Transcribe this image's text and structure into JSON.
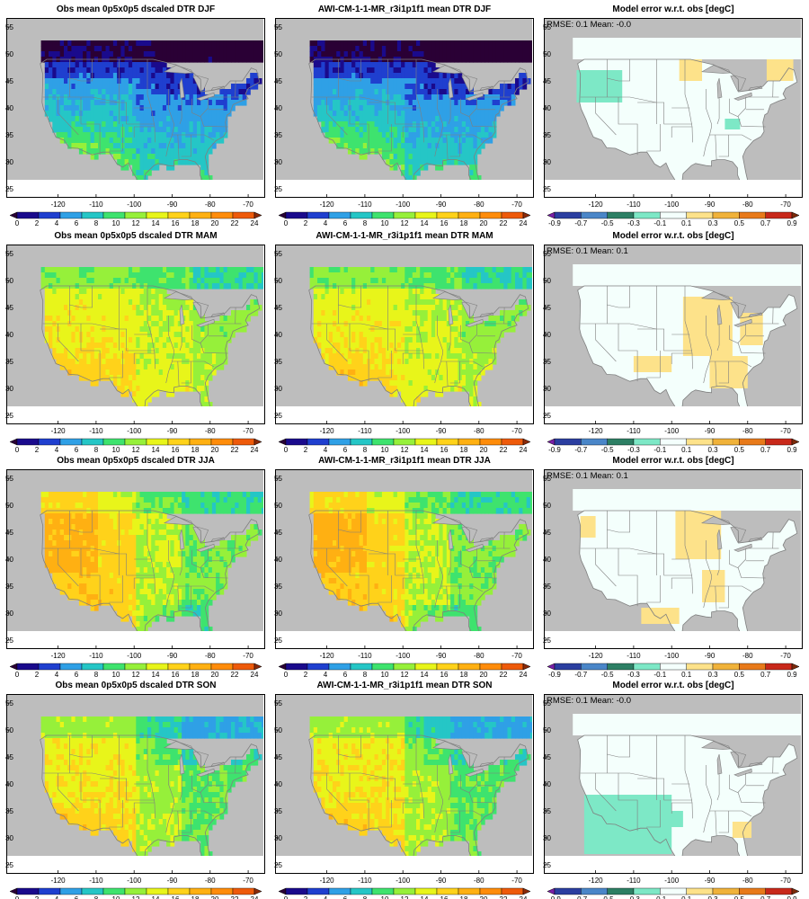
{
  "figure": {
    "rows": [
      {
        "season": "DJF",
        "panels": [
          {
            "kind": "obs",
            "title": "Obs mean 0p5x0p5 dscaled DTR DJF"
          },
          {
            "kind": "model",
            "title": "AWI-CM-1-1-MR_r3i1p1f1 mean DTR DJF"
          },
          {
            "kind": "error",
            "title": "Model error w.r.t. obs [degC]",
            "stats": "RMSE: 0.1  Mean: -0.0"
          }
        ]
      },
      {
        "season": "MAM",
        "panels": [
          {
            "kind": "obs",
            "title": "Obs mean 0p5x0p5 dscaled DTR MAM"
          },
          {
            "kind": "model",
            "title": "AWI-CM-1-1-MR_r3i1p1f1 mean DTR MAM"
          },
          {
            "kind": "error",
            "title": "Model error w.r.t. obs [degC]",
            "stats": "RMSE: 0.1  Mean: 0.1"
          }
        ]
      },
      {
        "season": "JJA",
        "panels": [
          {
            "kind": "obs",
            "title": "Obs mean 0p5x0p5 dscaled DTR JJA"
          },
          {
            "kind": "model",
            "title": "AWI-CM-1-1-MR_r3i1p1f1 mean DTR JJA"
          },
          {
            "kind": "error",
            "title": "Model error w.r.t. obs [degC]",
            "stats": "RMSE: 0.1  Mean: 0.1"
          }
        ]
      },
      {
        "season": "SON",
        "panels": [
          {
            "kind": "obs",
            "title": "Obs mean 0p5x0p5 dscaled DTR SON"
          },
          {
            "kind": "model",
            "title": "AWI-CM-1-1-MR_r3i1p1f1 mean DTR SON"
          },
          {
            "kind": "error",
            "title": "Model error w.r.t. obs [degC]",
            "stats": "RMSE: 0.1  Mean: -0.0"
          }
        ]
      }
    ],
    "lon_ticks": [
      "-120",
      "-110",
      "-100",
      "-90",
      "-80",
      "-70"
    ],
    "lat_ticks": [
      "55",
      "50",
      "45",
      "40",
      "35",
      "30",
      "25"
    ],
    "colorbars": {
      "mean": {
        "labels": [
          "0",
          "2",
          "4",
          "6",
          "8",
          "10",
          "12",
          "14",
          "16",
          "18",
          "20",
          "22",
          "24"
        ],
        "colors": [
          "#2a0035",
          "#1a0a8c",
          "#1f3fcf",
          "#2fa0e6",
          "#25c6c6",
          "#3ee36e",
          "#96f03a",
          "#e8f51a",
          "#ffd21a",
          "#ffb012",
          "#ff8c0a",
          "#ee5a0a",
          "#8a2a0a"
        ]
      },
      "error": {
        "labels": [
          "-0.9",
          "-0.7",
          "-0.5",
          "-0.3",
          "-0.1",
          "0.1",
          "0.3",
          "0.5",
          "0.7",
          "0.9"
        ],
        "colors": [
          "#7a1fa8",
          "#2b3ea0",
          "#4a86c8",
          "#2d7f64",
          "#7de8c6",
          "#f4fffc",
          "#fde28a",
          "#f0b23a",
          "#e87a1a",
          "#c8281a",
          "#7a2a0a"
        ]
      }
    },
    "colors": {
      "land_mask": "#bdbdbd",
      "border_lines": "#7f7f7f",
      "frame": "#000000"
    }
  }
}
